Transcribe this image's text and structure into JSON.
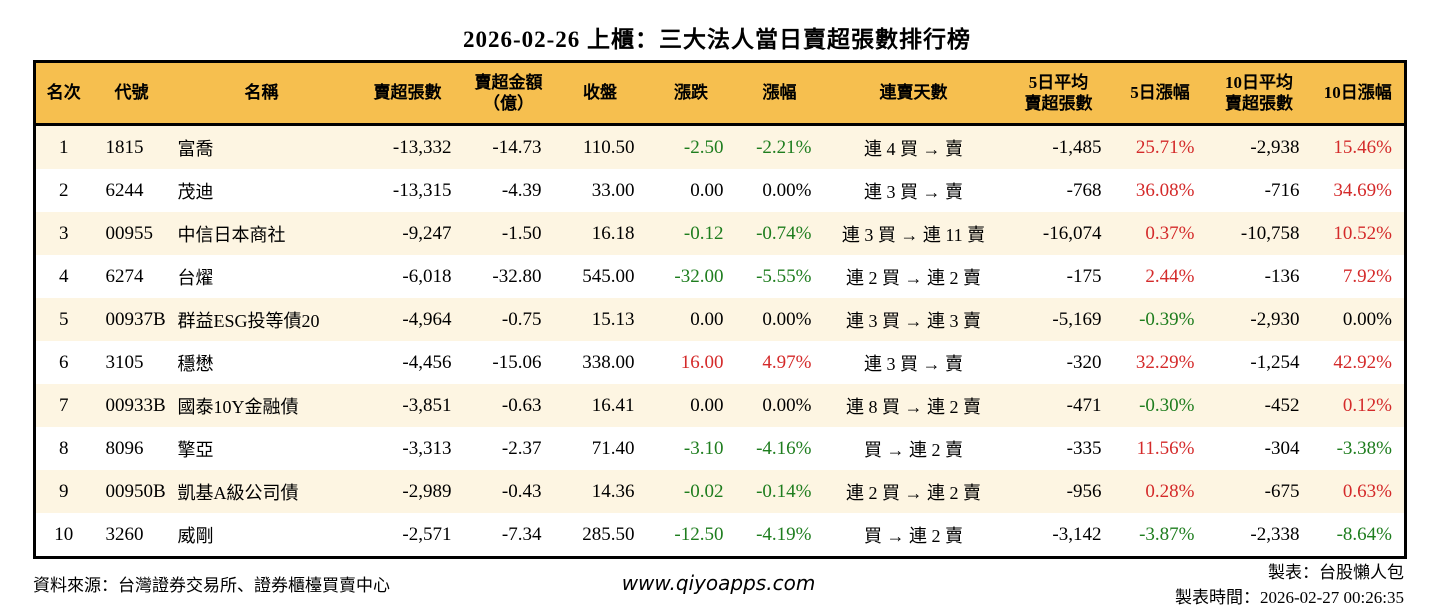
{
  "title": "2026-02-26 上櫃：三大法人當日賣超張數排行榜",
  "colors": {
    "up_red": "#d42a2a",
    "down_green": "#1e7d1e",
    "header_bg": "#f6bf4f",
    "stripe_bg": "#fdf5e2",
    "border": "#000000"
  },
  "table": {
    "columns": [
      {
        "key": "rank",
        "label": "名次"
      },
      {
        "key": "code",
        "label": "代號"
      },
      {
        "key": "name",
        "label": "名稱"
      },
      {
        "key": "sell_qty",
        "label": "賣超張數"
      },
      {
        "key": "sell_amt",
        "label": "賣超金額\n（億）"
      },
      {
        "key": "close",
        "label": "收盤"
      },
      {
        "key": "change",
        "label": "漲跌"
      },
      {
        "key": "change_pct",
        "label": "漲幅"
      },
      {
        "key": "streak",
        "label": "連賣天數"
      },
      {
        "key": "avg5",
        "label": "5日平均\n賣超張數"
      },
      {
        "key": "pct5",
        "label": "5日漲幅"
      },
      {
        "key": "avg10",
        "label": "10日平均\n賣超張數"
      },
      {
        "key": "pct10",
        "label": "10日漲幅"
      }
    ],
    "rows": [
      {
        "rank": "1",
        "code": "1815",
        "name": "富喬",
        "sell_qty": "-13,332",
        "sell_amt": "-14.73",
        "close": "110.50",
        "change": "-2.50",
        "change_pct": "-2.21%",
        "streak": "連 4 買 → 賣",
        "avg5": "-1,485",
        "pct5": "25.71%",
        "avg10": "-2,938",
        "pct10": "15.46%",
        "colors": {
          "change": "down",
          "change_pct": "down",
          "pct5": "up",
          "pct10": "up"
        }
      },
      {
        "rank": "2",
        "code": "6244",
        "name": "茂迪",
        "sell_qty": "-13,315",
        "sell_amt": "-4.39",
        "close": "33.00",
        "change": "0.00",
        "change_pct": "0.00%",
        "streak": "連 3 買 → 賣",
        "avg5": "-768",
        "pct5": "36.08%",
        "avg10": "-716",
        "pct10": "34.69%",
        "colors": {
          "pct5": "up",
          "pct10": "up"
        }
      },
      {
        "rank": "3",
        "code": "00955",
        "name": "中信日本商社",
        "sell_qty": "-9,247",
        "sell_amt": "-1.50",
        "close": "16.18",
        "change": "-0.12",
        "change_pct": "-0.74%",
        "streak": "連 3 買 → 連 11 賣",
        "avg5": "-16,074",
        "pct5": "0.37%",
        "avg10": "-10,758",
        "pct10": "10.52%",
        "colors": {
          "change": "down",
          "change_pct": "down",
          "pct5": "up",
          "pct10": "up"
        }
      },
      {
        "rank": "4",
        "code": "6274",
        "name": "台燿",
        "sell_qty": "-6,018",
        "sell_amt": "-32.80",
        "close": "545.00",
        "change": "-32.00",
        "change_pct": "-5.55%",
        "streak": "連 2 買 → 連 2 賣",
        "avg5": "-175",
        "pct5": "2.44%",
        "avg10": "-136",
        "pct10": "7.92%",
        "colors": {
          "change": "down",
          "change_pct": "down",
          "pct5": "up",
          "pct10": "up"
        }
      },
      {
        "rank": "5",
        "code": "00937B",
        "name": "群益ESG投等債20",
        "sell_qty": "-4,964",
        "sell_amt": "-0.75",
        "close": "15.13",
        "change": "0.00",
        "change_pct": "0.00%",
        "streak": "連 3 買 → 連 3 賣",
        "avg5": "-5,169",
        "pct5": "-0.39%",
        "avg10": "-2,930",
        "pct10": "0.00%",
        "colors": {
          "pct5": "down"
        }
      },
      {
        "rank": "6",
        "code": "3105",
        "name": "穩懋",
        "sell_qty": "-4,456",
        "sell_amt": "-15.06",
        "close": "338.00",
        "change": "16.00",
        "change_pct": "4.97%",
        "streak": "連 3 買 → 賣",
        "avg5": "-320",
        "pct5": "32.29%",
        "avg10": "-1,254",
        "pct10": "42.92%",
        "colors": {
          "change": "up",
          "change_pct": "up",
          "pct5": "up",
          "pct10": "up"
        }
      },
      {
        "rank": "7",
        "code": "00933B",
        "name": "國泰10Y金融債",
        "sell_qty": "-3,851",
        "sell_amt": "-0.63",
        "close": "16.41",
        "change": "0.00",
        "change_pct": "0.00%",
        "streak": "連 8 買 → 連 2 賣",
        "avg5": "-471",
        "pct5": "-0.30%",
        "avg10": "-452",
        "pct10": "0.12%",
        "colors": {
          "pct5": "down",
          "pct10": "up"
        }
      },
      {
        "rank": "8",
        "code": "8096",
        "name": "擎亞",
        "sell_qty": "-3,313",
        "sell_amt": "-2.37",
        "close": "71.40",
        "change": "-3.10",
        "change_pct": "-4.16%",
        "streak": "買 → 連 2 賣",
        "avg5": "-335",
        "pct5": "11.56%",
        "avg10": "-304",
        "pct10": "-3.38%",
        "colors": {
          "change": "down",
          "change_pct": "down",
          "pct5": "up",
          "pct10": "down"
        }
      },
      {
        "rank": "9",
        "code": "00950B",
        "name": "凱基A級公司債",
        "sell_qty": "-2,989",
        "sell_amt": "-0.43",
        "close": "14.36",
        "change": "-0.02",
        "change_pct": "-0.14%",
        "streak": "連 2 買 → 連 2 賣",
        "avg5": "-956",
        "pct5": "0.28%",
        "avg10": "-675",
        "pct10": "0.63%",
        "colors": {
          "change": "down",
          "change_pct": "down",
          "pct5": "up",
          "pct10": "up"
        }
      },
      {
        "rank": "10",
        "code": "3260",
        "name": "威剛",
        "sell_qty": "-2,571",
        "sell_amt": "-7.34",
        "close": "285.50",
        "change": "-12.50",
        "change_pct": "-4.19%",
        "streak": "買 → 連 2 賣",
        "avg5": "-3,142",
        "pct5": "-3.87%",
        "avg10": "-2,338",
        "pct10": "-8.64%",
        "colors": {
          "change": "down",
          "change_pct": "down",
          "pct5": "down",
          "pct10": "down"
        }
      }
    ]
  },
  "chart_data": {
    "type": "table",
    "title": "2026-02-26 上櫃：三大法人當日賣超張數排行榜",
    "columns": [
      "名次",
      "代號",
      "名稱",
      "賣超張數",
      "賣超金額（億）",
      "收盤",
      "漲跌",
      "漲幅",
      "連賣天數",
      "5日平均賣超張數",
      "5日漲幅",
      "10日平均賣超張數",
      "10日漲幅"
    ],
    "rows": [
      [
        "1",
        "1815",
        "富喬",
        "-13,332",
        "-14.73",
        "110.50",
        "-2.50",
        "-2.21%",
        "連 4 買 → 賣",
        "-1,485",
        "25.71%",
        "-2,938",
        "15.46%"
      ],
      [
        "2",
        "6244",
        "茂迪",
        "-13,315",
        "-4.39",
        "33.00",
        "0.00",
        "0.00%",
        "連 3 買 → 賣",
        "-768",
        "36.08%",
        "-716",
        "34.69%"
      ],
      [
        "3",
        "00955",
        "中信日本商社",
        "-9,247",
        "-1.50",
        "16.18",
        "-0.12",
        "-0.74%",
        "連 3 買 → 連 11 賣",
        "-16,074",
        "0.37%",
        "-10,758",
        "10.52%"
      ],
      [
        "4",
        "6274",
        "台燿",
        "-6,018",
        "-32.80",
        "545.00",
        "-32.00",
        "-5.55%",
        "連 2 買 → 連 2 賣",
        "-175",
        "2.44%",
        "-136",
        "7.92%"
      ],
      [
        "5",
        "00937B",
        "群益ESG投等債20",
        "-4,964",
        "-0.75",
        "15.13",
        "0.00",
        "0.00%",
        "連 3 買 → 連 3 賣",
        "-5,169",
        "-0.39%",
        "-2,930",
        "0.00%"
      ],
      [
        "6",
        "3105",
        "穩懋",
        "-4,456",
        "-15.06",
        "338.00",
        "16.00",
        "4.97%",
        "連 3 買 → 賣",
        "-320",
        "32.29%",
        "-1,254",
        "42.92%"
      ],
      [
        "7",
        "00933B",
        "國泰10Y金融債",
        "-3,851",
        "-0.63",
        "16.41",
        "0.00",
        "0.00%",
        "連 8 買 → 連 2 賣",
        "-471",
        "-0.30%",
        "-452",
        "0.12%"
      ],
      [
        "8",
        "8096",
        "擎亞",
        "-3,313",
        "-2.37",
        "71.40",
        "-3.10",
        "-4.16%",
        "買 → 連 2 賣",
        "-335",
        "11.56%",
        "-304",
        "-3.38%"
      ],
      [
        "9",
        "00950B",
        "凱基A級公司債",
        "-2,989",
        "-0.43",
        "14.36",
        "-0.02",
        "-0.14%",
        "連 2 買 → 連 2 賣",
        "-956",
        "0.28%",
        "-675",
        "0.63%"
      ],
      [
        "10",
        "3260",
        "威剛",
        "-2,571",
        "-7.34",
        "285.50",
        "-12.50",
        "-4.19%",
        "買 → 連 2 賣",
        "-3,142",
        "-3.87%",
        "-2,338",
        "-8.64%"
      ]
    ]
  },
  "footer": {
    "source": "資料來源：台灣證券交易所、證券櫃檯買賣中心",
    "website": "www.qiyoapps.com",
    "made_by": "製表：台股懶人包",
    "made_at": "製表時間：2026-02-27 00:26:35"
  }
}
